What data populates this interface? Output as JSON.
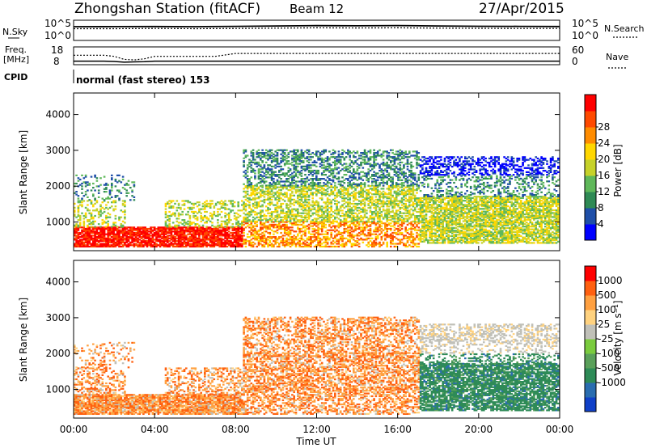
{
  "header": {
    "station": "Zhongshan Station (fitACF)",
    "beam": "Beam 12",
    "date": "27/Apr/2015",
    "cpid_label": "CPID",
    "cpid_text": "normal (fast stereo) 153"
  },
  "chart_data": [
    {
      "type": "line",
      "panel": "noise",
      "left_label": "N.Sky",
      "right_label": "N.Search",
      "yscale": "log",
      "ylim": [
        1,
        100000
      ],
      "tick_labels": [
        "10^5",
        "10^0"
      ],
      "x": [
        "00:00",
        "02:00",
        "04:00",
        "06:00",
        "08:00",
        "10:00",
        "12:00",
        "14:00",
        "16:00",
        "18:00",
        "20:00",
        "22:00",
        "24:00"
      ],
      "series": [
        {
          "name": "N.Sky",
          "style": "solid",
          "values": [
            2500,
            2600,
            2800,
            2500,
            3000,
            3800,
            4500,
            4200,
            4800,
            3800,
            3200,
            3000,
            2800
          ]
        },
        {
          "name": "N.Search",
          "style": "dotted",
          "values": [
            800,
            800,
            900,
            800,
            900,
            1100,
            1300,
            1200,
            1300,
            1100,
            1000,
            900,
            900
          ]
        }
      ]
    },
    {
      "type": "line",
      "panel": "frequency",
      "left_label_lines": [
        "Freq.",
        "[MHz]"
      ],
      "right_label": "Nave",
      "ylim_left": [
        8,
        18
      ],
      "ylim_right": [
        0,
        60
      ],
      "left_tick_labels": [
        "18",
        "8"
      ],
      "right_tick_labels": [
        "60",
        "0"
      ],
      "x": [
        "00:00",
        "01:30",
        "02:00",
        "02:30",
        "03:00",
        "03:30",
        "04:00",
        "05:00",
        "06:00",
        "07:00",
        "08:00",
        "12:00",
        "16:00",
        "16:30",
        "18:00",
        "20:00",
        "22:00",
        "24:00"
      ],
      "series": [
        {
          "name": "Freq.",
          "style": "solid",
          "values": [
            10,
            10,
            9.8,
            9.4,
            9.6,
            9.7,
            10,
            10,
            10,
            10,
            10,
            10,
            10,
            10,
            10,
            10,
            10,
            10
          ]
        },
        {
          "name": "Nave",
          "style": "dotted",
          "values": [
            32,
            32,
            28,
            18,
            16,
            20,
            28,
            28,
            28,
            28,
            38,
            38,
            38,
            38,
            38,
            38,
            38,
            38
          ]
        }
      ]
    },
    {
      "type": "heatmap",
      "panel": "power",
      "ylabel": "Slant Range [km]",
      "xlabel": "",
      "colorbar_label": "Power [dB]",
      "colorbar_ticks": [
        "4",
        "8",
        "12",
        "16",
        "20",
        "24",
        "28"
      ],
      "colorbar_colors": [
        "#0000ff",
        "#1f4fa8",
        "#2f8a55",
        "#5fb85a",
        "#c6d22a",
        "#ffd700",
        "#ff8c00",
        "#ff4a00",
        "#ff0000"
      ],
      "y_ticks": [
        "1000",
        "2000",
        "3000",
        "4000"
      ],
      "ylim": [
        200,
        4600
      ],
      "xlim": [
        "00:00",
        "24:00"
      ]
    },
    {
      "type": "heatmap",
      "panel": "velocity",
      "ylabel": "Slant Range [km]",
      "xlabel": "Time UT",
      "colorbar_label": "Velocity [m s⁻¹]",
      "colorbar_ticks": [
        "1000",
        "500",
        "100",
        "25",
        "-25",
        "-100",
        "-500",
        "-1000"
      ],
      "colorbar_colors": [
        "#1040c8",
        "#2a6db0",
        "#2e8b57",
        "#5aa05a",
        "#7acb3e",
        "#c0c0b8",
        "#ffd27f",
        "#ffa040",
        "#ff6010",
        "#ff0000"
      ],
      "y_ticks": [
        "1000",
        "2000",
        "3000",
        "4000"
      ],
      "ylim": [
        200,
        4600
      ],
      "x_ticks": [
        "00:00",
        "04:00",
        "08:00",
        "12:00",
        "16:00",
        "20:00",
        "00:00"
      ],
      "xlim": [
        "00:00",
        "24:00"
      ]
    }
  ]
}
